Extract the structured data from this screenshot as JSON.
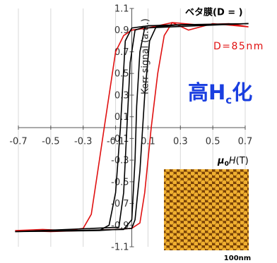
{
  "chart_data": {
    "type": "line",
    "title": "ベタ膜(D =    )",
    "annotation": "D=85nm",
    "highlight": {
      "main": "高H",
      "sub": "c",
      "tail": "化"
    },
    "y_label": "Kerr signal (a.u.)",
    "x_label": {
      "symbol": "μ",
      "sub": "0",
      "var": "H",
      "unit": "(T)"
    },
    "scale_bar": "100nm",
    "xlim": [
      -0.7,
      0.7
    ],
    "xticks": [
      -0.7,
      -0.5,
      -0.3,
      -0.1,
      0.1,
      0.3,
      0.5,
      0.7
    ],
    "ylim": [
      -1.1,
      1.1
    ],
    "yticks": [
      1.1,
      0.9,
      0.7,
      0.5,
      0.3,
      0.1,
      -0.1,
      -0.3,
      -0.5,
      -0.7,
      -0.9,
      -1.1
    ],
    "grid": true,
    "series": [
      {
        "color": "#e01010",
        "x": [
          0.72,
          0.6,
          0.4,
          0.25,
          0.1,
          0.0,
          -0.05,
          -0.1,
          -0.13,
          -0.17,
          -0.21,
          -0.25,
          -0.3,
          -0.4,
          -0.55,
          -0.72,
          -0.72,
          -0.5,
          -0.3,
          -0.1,
          0.0,
          0.05,
          0.08,
          0.12,
          0.16,
          0.2,
          0.25,
          0.35,
          0.5,
          0.72
        ],
        "values": [
          0.93,
          0.96,
          0.95,
          0.97,
          0.92,
          0.9,
          0.85,
          0.7,
          0.4,
          0.0,
          -0.4,
          -0.8,
          -0.93,
          -0.95,
          -0.94,
          -0.95,
          -0.95,
          -0.96,
          -0.95,
          -0.94,
          -0.93,
          -0.88,
          -0.6,
          0.0,
          0.5,
          0.85,
          0.97,
          0.9,
          0.96,
          0.93
        ]
      },
      {
        "color": "#000000",
        "x": [
          0.72,
          0.3,
          0.1,
          0.0,
          -0.04,
          -0.07,
          -0.1,
          -0.14,
          -0.2,
          -0.72,
          -0.72,
          -0.2,
          0.0,
          0.02,
          0.05,
          0.08,
          0.11,
          0.15,
          0.3,
          0.72
        ],
        "values": [
          0.96,
          0.95,
          0.94,
          0.92,
          0.8,
          0.0,
          -0.6,
          -0.9,
          -0.95,
          -0.96,
          -0.96,
          -0.95,
          -0.93,
          -0.85,
          -0.4,
          0.3,
          0.8,
          0.93,
          0.95,
          0.96
        ]
      },
      {
        "color": "#000000",
        "x": [
          0.72,
          0.1,
          0.02,
          -0.01,
          -0.03,
          -0.05,
          -0.08,
          -0.72,
          -0.72,
          -0.05,
          0.0,
          0.02,
          0.03,
          0.05,
          0.08,
          0.72
        ],
        "values": [
          0.96,
          0.94,
          0.9,
          0.6,
          0.0,
          -0.6,
          -0.92,
          -0.96,
          -0.96,
          -0.94,
          -0.85,
          -0.3,
          0.2,
          0.7,
          0.92,
          0.96
        ]
      }
    ]
  }
}
